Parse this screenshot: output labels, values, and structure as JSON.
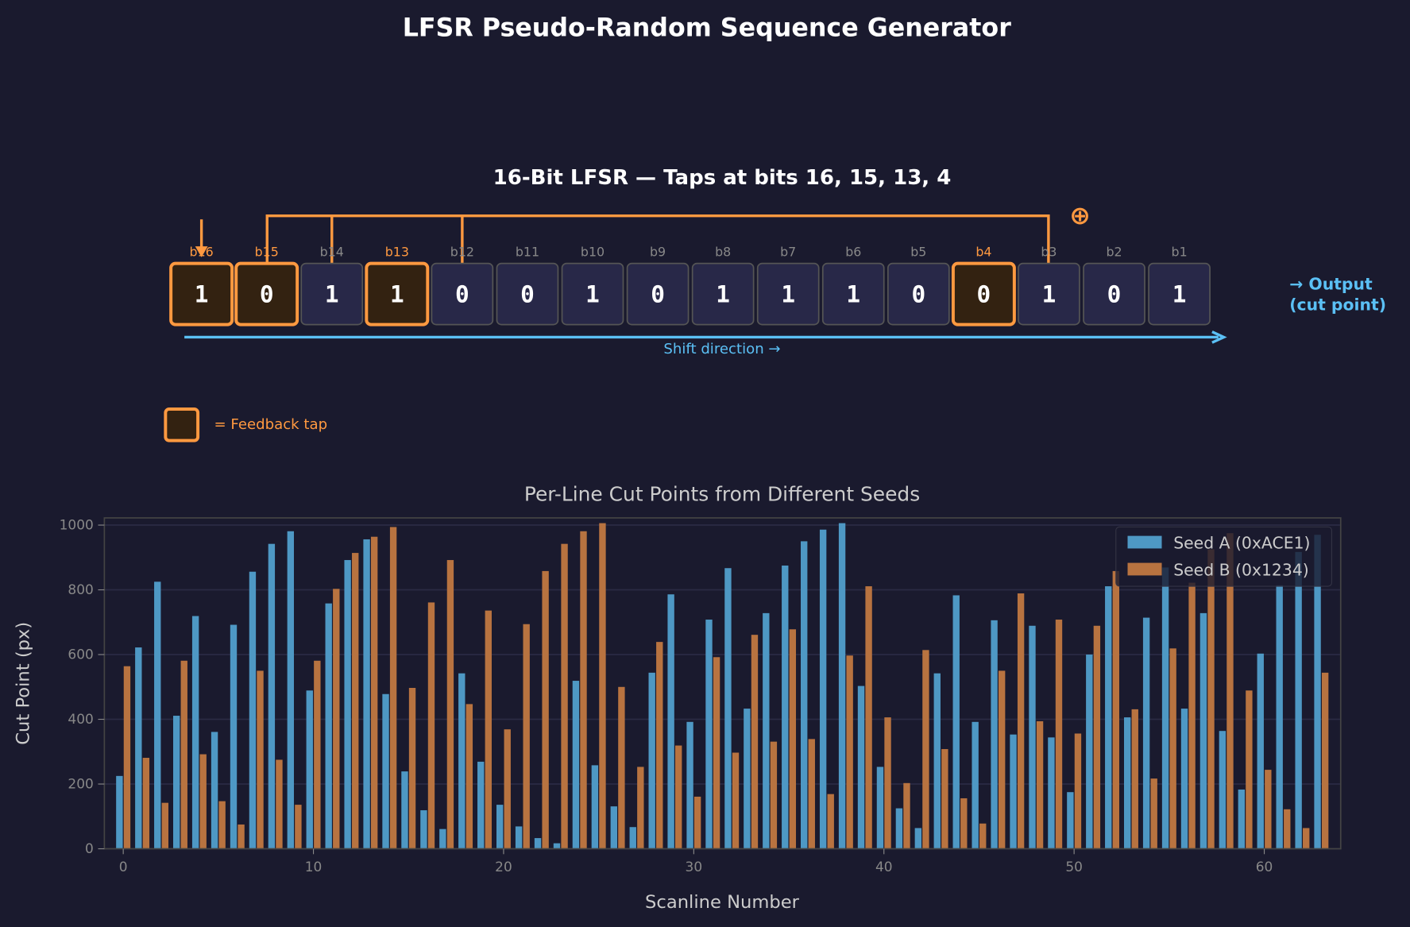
{
  "title": "LFSR Pseudo-Random Sequence Generator",
  "diagram": {
    "subtitle": "16-Bit LFSR — Taps at bits 16, 15, 13, 4",
    "xor_symbol": "⊕",
    "bits": [
      {
        "label": "b16",
        "value": "1",
        "tap": true
      },
      {
        "label": "b15",
        "value": "0",
        "tap": true
      },
      {
        "label": "b14",
        "value": "1",
        "tap": false
      },
      {
        "label": "b13",
        "value": "1",
        "tap": true
      },
      {
        "label": "b12",
        "value": "0",
        "tap": false
      },
      {
        "label": "b11",
        "value": "0",
        "tap": false
      },
      {
        "label": "b10",
        "value": "1",
        "tap": false
      },
      {
        "label": "b9",
        "value": "0",
        "tap": false
      },
      {
        "label": "b8",
        "value": "1",
        "tap": false
      },
      {
        "label": "b7",
        "value": "1",
        "tap": false
      },
      {
        "label": "b6",
        "value": "1",
        "tap": false
      },
      {
        "label": "b5",
        "value": "0",
        "tap": false
      },
      {
        "label": "b4",
        "value": "0",
        "tap": true
      },
      {
        "label": "b3",
        "value": "1",
        "tap": false
      },
      {
        "label": "b2",
        "value": "0",
        "tap": false
      },
      {
        "label": "b1",
        "value": "1",
        "tap": false
      }
    ],
    "shift_label": "Shift direction →",
    "output_line1": "→ Output",
    "output_line2": "(cut point)",
    "legend_label": "= Feedback tap",
    "colors": {
      "tap": "#ff9940",
      "cell": "#282848",
      "tap_fill": "#332211",
      "shift": "#5bc0f5"
    }
  },
  "chart_data": {
    "type": "bar",
    "title": "Per-Line Cut Points from Different Seeds",
    "xlabel": "Scanline Number",
    "ylabel": "Cut Point (px)",
    "xlim": [
      -1,
      64
    ],
    "ylim": [
      0,
      1025
    ],
    "xticks": [
      0,
      10,
      20,
      30,
      40,
      50,
      60
    ],
    "yticks": [
      0,
      200,
      400,
      600,
      800,
      1000
    ],
    "grid": true,
    "legend": "top-right",
    "series": [
      {
        "name": "Seed A (0xACE1)",
        "color": "#4e98c4",
        "values": [
          225,
          622,
          825,
          411,
          719,
          361,
          692,
          856,
          942,
          981,
          489,
          758,
          892,
          956,
          478,
          239,
          119,
          61,
          542,
          269,
          136,
          69,
          33,
          17,
          519,
          258,
          131,
          67,
          544,
          786,
          392,
          708,
          867,
          433,
          728,
          875,
          950,
          986,
          1006,
          503,
          253,
          125,
          64,
          542,
          783,
          392,
          706,
          353,
          689,
          344,
          175,
          600,
          811,
          406,
          714,
          869,
          433,
          728,
          364,
          183,
          603,
          814,
          917,
          970
        ]
      },
      {
        "name": "Seed B (0x1234)",
        "color": "#b87340",
        "values": [
          564,
          281,
          142,
          581,
          292,
          147,
          75,
          550,
          275,
          136,
          581,
          803,
          914,
          964,
          994,
          497,
          761,
          892,
          447,
          736,
          369,
          694,
          858,
          942,
          981,
          1006,
          500,
          253,
          639,
          319,
          161,
          592,
          297,
          661,
          331,
          678,
          339,
          169,
          597,
          811,
          406,
          203,
          614,
          308,
          156,
          78,
          550,
          789,
          394,
          708,
          356,
          689,
          858,
          431,
          217,
          619,
          822,
          925,
          975,
          489,
          244,
          122,
          64,
          544
        ]
      }
    ]
  }
}
